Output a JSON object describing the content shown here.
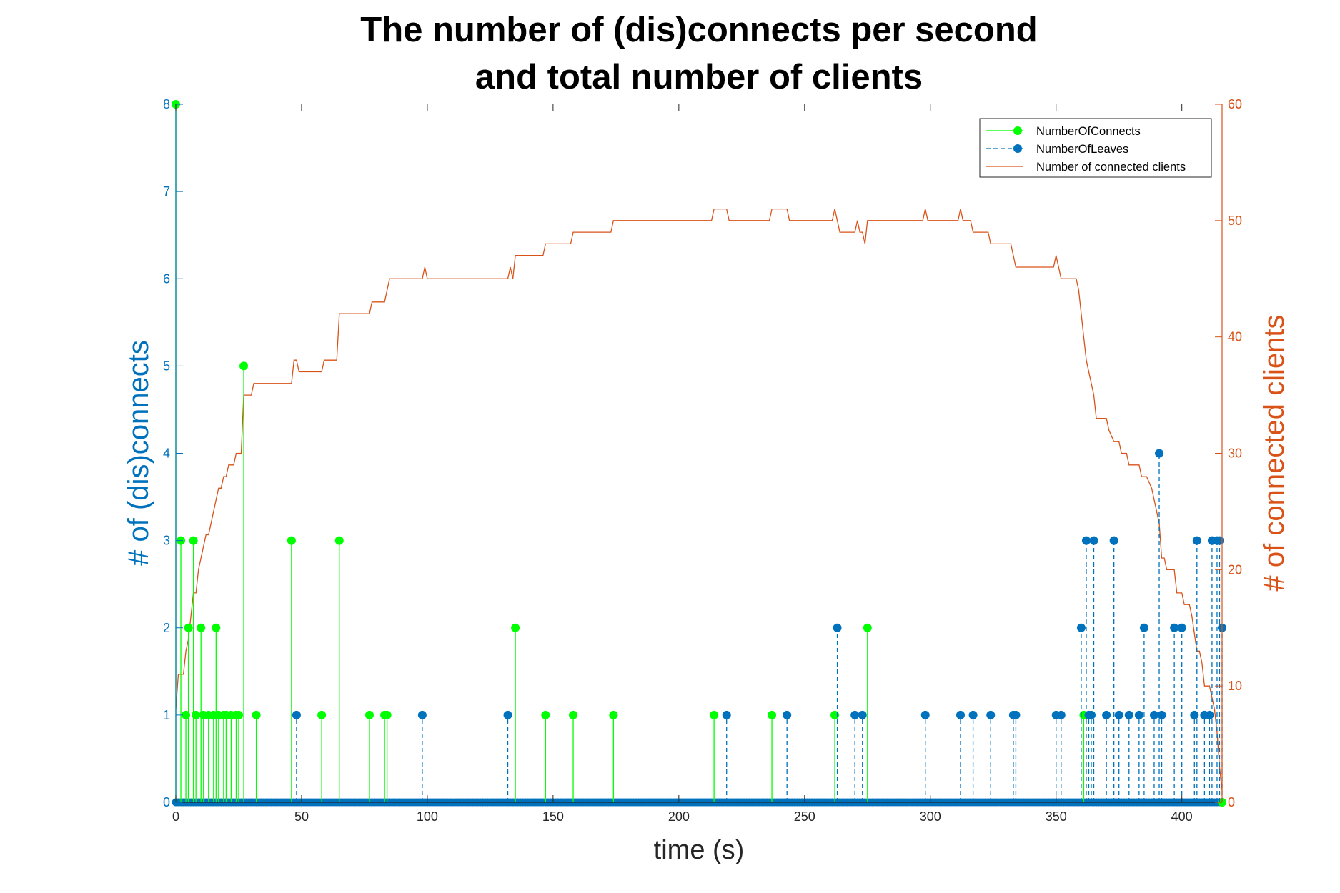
{
  "chart_data": {
    "type": "line",
    "title": [
      "The number of (dis)connects per second",
      "and total number of clients"
    ],
    "xlabel": "time (s)",
    "ylabel_left": "# of (dis)connects",
    "ylabel_right": "# of connected clients",
    "xlim": [
      0,
      416
    ],
    "ylim_left": [
      0,
      8
    ],
    "ylim_right": [
      0,
      60
    ],
    "x_ticks": [
      0,
      50,
      100,
      150,
      200,
      250,
      300,
      350,
      400
    ],
    "y_ticks_left": [
      0,
      1,
      2,
      3,
      4,
      5,
      6,
      7,
      8
    ],
    "y_ticks_right": [
      0,
      10,
      20,
      30,
      40,
      50,
      60
    ],
    "legend_position": "top-right",
    "colors": {
      "connects": "#00ff00",
      "leaves": "#0072bd",
      "clients": "#d95319",
      "left_axis": "#0072bd",
      "right_axis": "#d95319"
    },
    "series": [
      {
        "name": "NumberOfConnects",
        "style": "stem",
        "points": [
          [
            0,
            8
          ],
          [
            2,
            3
          ],
          [
            4,
            1
          ],
          [
            5,
            2
          ],
          [
            7,
            3
          ],
          [
            8,
            1
          ],
          [
            10,
            2
          ],
          [
            11,
            1
          ],
          [
            13,
            1
          ],
          [
            15,
            1
          ],
          [
            16,
            2
          ],
          [
            17,
            1
          ],
          [
            19,
            1
          ],
          [
            20,
            1
          ],
          [
            22,
            1
          ],
          [
            24,
            1
          ],
          [
            25,
            1
          ],
          [
            27,
            5
          ],
          [
            32,
            1
          ],
          [
            46,
            3
          ],
          [
            58,
            1
          ],
          [
            65,
            3
          ],
          [
            77,
            1
          ],
          [
            83,
            1
          ],
          [
            84,
            1
          ],
          [
            135,
            2
          ],
          [
            147,
            1
          ],
          [
            158,
            1
          ],
          [
            174,
            1
          ],
          [
            214,
            1
          ],
          [
            237,
            1
          ],
          [
            262,
            1
          ],
          [
            275,
            2
          ],
          [
            361,
            1
          ],
          [
            416,
            0
          ]
        ]
      },
      {
        "name": "NumberOfLeaves",
        "style": "stem-dashed",
        "points": [
          [
            48,
            1
          ],
          [
            98,
            1
          ],
          [
            132,
            1
          ],
          [
            219,
            1
          ],
          [
            243,
            1
          ],
          [
            263,
            2
          ],
          [
            270,
            1
          ],
          [
            273,
            1
          ],
          [
            298,
            1
          ],
          [
            312,
            1
          ],
          [
            317,
            1
          ],
          [
            324,
            1
          ],
          [
            333,
            1
          ],
          [
            334,
            1
          ],
          [
            350,
            1
          ],
          [
            352,
            1
          ],
          [
            360,
            2
          ],
          [
            362,
            3
          ],
          [
            363,
            1
          ],
          [
            364,
            1
          ],
          [
            365,
            3
          ],
          [
            370,
            1
          ],
          [
            373,
            3
          ],
          [
            375,
            1
          ],
          [
            379,
            1
          ],
          [
            383,
            1
          ],
          [
            385,
            2
          ],
          [
            389,
            1
          ],
          [
            391,
            4
          ],
          [
            392,
            1
          ],
          [
            405,
            1
          ],
          [
            406,
            3
          ],
          [
            397,
            2
          ],
          [
            400,
            2
          ],
          [
            409,
            1
          ],
          [
            411,
            1
          ],
          [
            412,
            3
          ],
          [
            414,
            3
          ],
          [
            415,
            3
          ],
          [
            416,
            2
          ]
        ]
      },
      {
        "name": "Number of connected clients",
        "style": "line",
        "points": [
          [
            0,
            8
          ],
          [
            1,
            11
          ],
          [
            3,
            11
          ],
          [
            4,
            13
          ],
          [
            5,
            14
          ],
          [
            6,
            16
          ],
          [
            7,
            18
          ],
          [
            8,
            18
          ],
          [
            9,
            20
          ],
          [
            10,
            21
          ],
          [
            11,
            22
          ],
          [
            12,
            23
          ],
          [
            13,
            23
          ],
          [
            14,
            24
          ],
          [
            15,
            25
          ],
          [
            16,
            26
          ],
          [
            17,
            27
          ],
          [
            18,
            27
          ],
          [
            19,
            28
          ],
          [
            20,
            28
          ],
          [
            21,
            29
          ],
          [
            22,
            29
          ],
          [
            23,
            29
          ],
          [
            24,
            30
          ],
          [
            25,
            30
          ],
          [
            26,
            30
          ],
          [
            27,
            35
          ],
          [
            30,
            35
          ],
          [
            31,
            36
          ],
          [
            46,
            36
          ],
          [
            47,
            38
          ],
          [
            48,
            38
          ],
          [
            49,
            37
          ],
          [
            58,
            37
          ],
          [
            59,
            38
          ],
          [
            64,
            38
          ],
          [
            65,
            42
          ],
          [
            77,
            42
          ],
          [
            78,
            43
          ],
          [
            83,
            43
          ],
          [
            84,
            44
          ],
          [
            85,
            45
          ],
          [
            98,
            45
          ],
          [
            99,
            46
          ],
          [
            100,
            45
          ],
          [
            132,
            45
          ],
          [
            133,
            46
          ],
          [
            134,
            45
          ],
          [
            135,
            47
          ],
          [
            146,
            47
          ],
          [
            147,
            48
          ],
          [
            157,
            48
          ],
          [
            158,
            49
          ],
          [
            173,
            49
          ],
          [
            174,
            50
          ],
          [
            213,
            50
          ],
          [
            214,
            51
          ],
          [
            219,
            51
          ],
          [
            220,
            50
          ],
          [
            236,
            50
          ],
          [
            237,
            51
          ],
          [
            243,
            51
          ],
          [
            244,
            50
          ],
          [
            261,
            50
          ],
          [
            262,
            51
          ],
          [
            263,
            50
          ],
          [
            264,
            49
          ],
          [
            270,
            49
          ],
          [
            271,
            50
          ],
          [
            272,
            49
          ],
          [
            273,
            49
          ],
          [
            274,
            48
          ],
          [
            275,
            50
          ],
          [
            297,
            50
          ],
          [
            298,
            51
          ],
          [
            299,
            50
          ],
          [
            311,
            50
          ],
          [
            312,
            51
          ],
          [
            313,
            50
          ],
          [
            316,
            50
          ],
          [
            317,
            49
          ],
          [
            323,
            49
          ],
          [
            324,
            48
          ],
          [
            332,
            48
          ],
          [
            333,
            47
          ],
          [
            334,
            46
          ],
          [
            348,
            46
          ],
          [
            349,
            46
          ],
          [
            350,
            47
          ],
          [
            351,
            46
          ],
          [
            352,
            45
          ],
          [
            358,
            45
          ],
          [
            359,
            44
          ],
          [
            360,
            42
          ],
          [
            361,
            40
          ],
          [
            362,
            38
          ],
          [
            363,
            37
          ],
          [
            364,
            36
          ],
          [
            365,
            35
          ],
          [
            366,
            33
          ],
          [
            370,
            33
          ],
          [
            371,
            32
          ],
          [
            373,
            31
          ],
          [
            375,
            31
          ],
          [
            376,
            30
          ],
          [
            378,
            30
          ],
          [
            379,
            29
          ],
          [
            383,
            29
          ],
          [
            384,
            28
          ],
          [
            386,
            28
          ],
          [
            388,
            27
          ],
          [
            389,
            26
          ],
          [
            391,
            24
          ],
          [
            392,
            21
          ],
          [
            393,
            21
          ],
          [
            394,
            20
          ],
          [
            397,
            20
          ],
          [
            398,
            18
          ],
          [
            400,
            18
          ],
          [
            401,
            17
          ],
          [
            403,
            17
          ],
          [
            404,
            16
          ],
          [
            406,
            13
          ],
          [
            407,
            13
          ],
          [
            408,
            12
          ],
          [
            409,
            10
          ],
          [
            411,
            10
          ],
          [
            412,
            9
          ],
          [
            413,
            8
          ],
          [
            414,
            6
          ],
          [
            415,
            3
          ],
          [
            416,
            1
          ]
        ]
      }
    ]
  }
}
